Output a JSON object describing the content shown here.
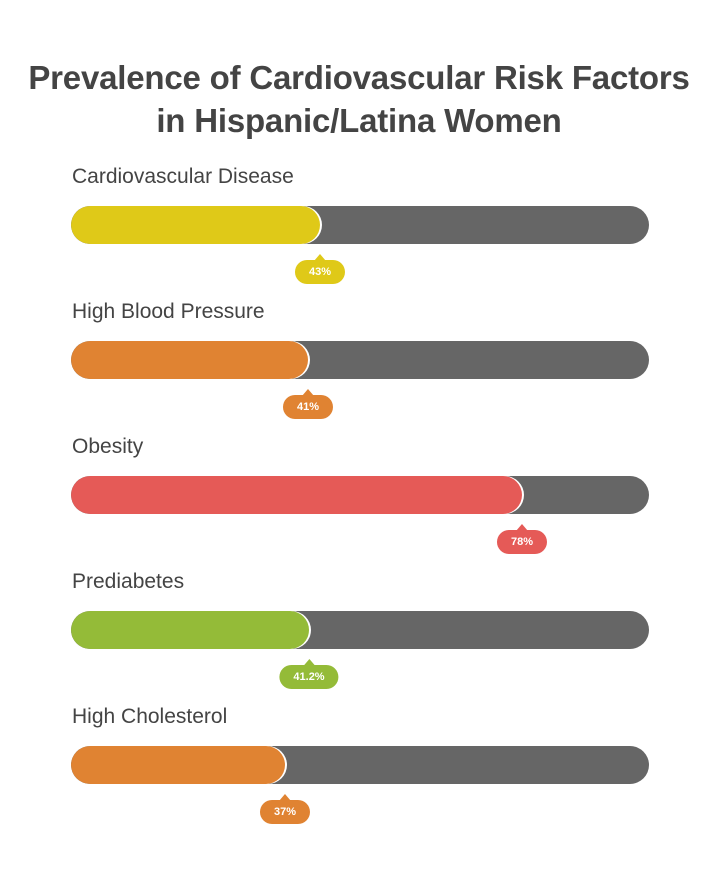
{
  "chart_data": {
    "type": "bar",
    "orientation": "horizontal",
    "title": "Prevalence of Cardiovascular Risk Factors in Hispanic/Latina Women",
    "title_lines": [
      "Prevalence of Cardiovascular Risk Factors",
      "in Hispanic/Latina Women"
    ],
    "xlim": [
      0,
      100
    ],
    "unit": "%",
    "categories": [
      "Cardiovascular Disease",
      "High Blood Pressure",
      "Obesity",
      "Prediabetes",
      "High Cholesterol"
    ],
    "values": [
      43,
      41,
      78,
      41.2,
      37
    ],
    "value_labels": [
      "43%",
      "41%",
      "78%",
      "41.2%",
      "37%"
    ],
    "colors": [
      "#dfc918",
      "#e08332",
      "#e55a57",
      "#94bb38",
      "#e08332"
    ],
    "track_color": "#666666"
  }
}
